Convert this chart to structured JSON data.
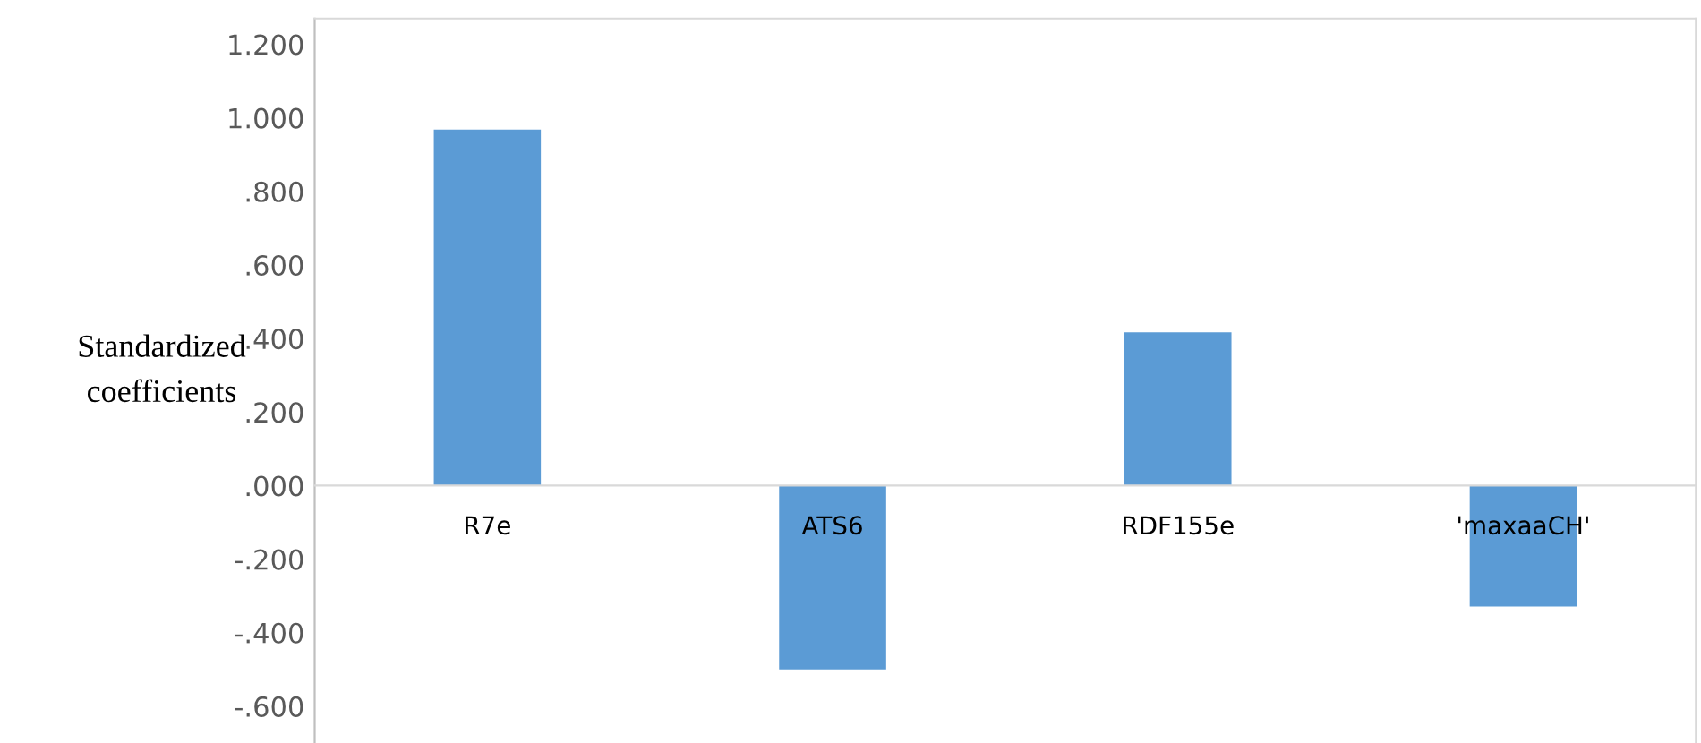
{
  "chart_data": {
    "type": "bar",
    "ylabel": "Standardized\ncoefficients",
    "categories": [
      "R7e",
      "ATS6",
      "RDF155e",
      "'maxaaCH'"
    ],
    "values": [
      0.968,
      -0.5,
      0.417,
      -0.329
    ],
    "color": "#5b9bd5",
    "ylim": [
      -0.7,
      1.27
    ],
    "yticks": [
      {
        "value": 1.2,
        "label": "1.200"
      },
      {
        "value": 1.0,
        "label": "1.000"
      },
      {
        "value": 0.8,
        "label": ".800"
      },
      {
        "value": 0.6,
        "label": ".600"
      },
      {
        "value": 0.4,
        "label": ".400"
      },
      {
        "value": 0.2,
        "label": ".200"
      },
      {
        "value": 0.0,
        "label": ".000"
      },
      {
        "value": -0.2,
        "label": "-.200"
      },
      {
        "value": -0.4,
        "label": "-.400"
      },
      {
        "value": -0.6,
        "label": "-.600"
      }
    ],
    "grid": false,
    "legend": false
  }
}
